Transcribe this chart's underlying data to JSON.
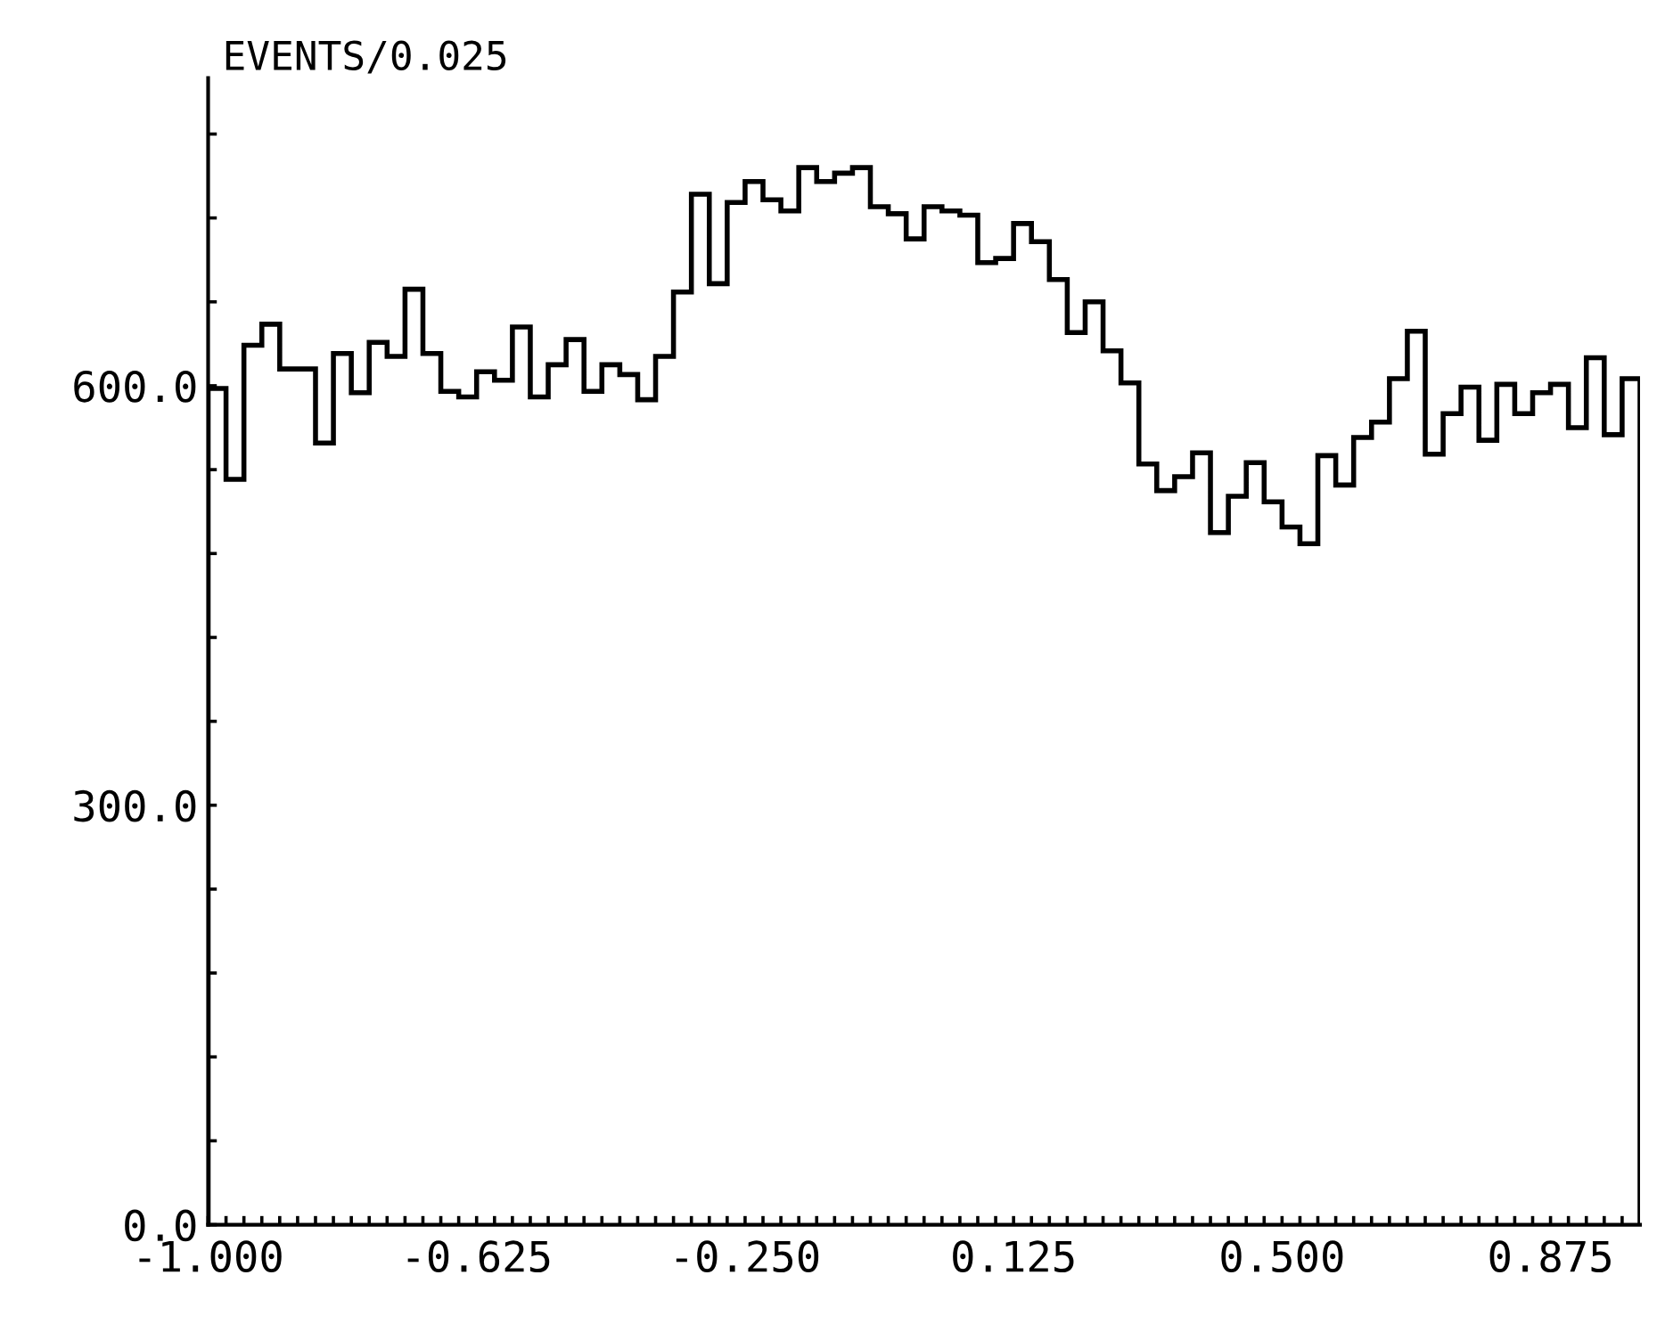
{
  "chart_data": {
    "type": "histogram",
    "ylabel": "EVENTS/0.025",
    "bins": [
      -1.0,
      -0.975,
      -0.95,
      -0.925,
      -0.9,
      -0.875,
      -0.85,
      -0.825,
      -0.8,
      -0.775,
      -0.75,
      -0.725,
      -0.7,
      -0.675,
      -0.65,
      -0.625,
      -0.6,
      -0.575,
      -0.55,
      -0.525,
      -0.5,
      -0.475,
      -0.45,
      -0.425,
      -0.4,
      -0.375,
      -0.35,
      -0.325,
      -0.3,
      -0.275,
      -0.25,
      -0.225,
      -0.2,
      -0.175,
      -0.15,
      -0.125,
      -0.1,
      -0.075,
      -0.05,
      -0.025,
      0.0,
      0.025,
      0.05,
      0.075,
      0.1,
      0.125,
      0.15,
      0.175,
      0.2,
      0.225,
      0.25,
      0.275,
      0.3,
      0.325,
      0.35,
      0.375,
      0.4,
      0.425,
      0.45,
      0.475,
      0.5,
      0.525,
      0.55,
      0.575,
      0.6,
      0.625,
      0.65,
      0.675,
      0.7,
      0.725,
      0.75,
      0.775,
      0.8,
      0.825,
      0.85,
      0.875,
      0.9,
      0.925,
      0.95,
      0.975,
      1.0
    ],
    "values": [
      598,
      533,
      629,
      644,
      612,
      612,
      559,
      623,
      595,
      631,
      621,
      669,
      623,
      596,
      592,
      610,
      604,
      642,
      592,
      615,
      633,
      596,
      615,
      608,
      590,
      621,
      667,
      737,
      673,
      731,
      746,
      733,
      725,
      756,
      746,
      752,
      756,
      728,
      723,
      705,
      728,
      725,
      722,
      688,
      691,
      716,
      703,
      676,
      638,
      660,
      625,
      602,
      544,
      525,
      535,
      552,
      495,
      521,
      545,
      517,
      499,
      487,
      550,
      529,
      563,
      574,
      605,
      639,
      551,
      580,
      599,
      561,
      601,
      580,
      595,
      601,
      570,
      620,
      565,
      605
    ],
    "color": "#000000",
    "xlim": [
      -1.0,
      1.0
    ],
    "ylim": [
      0,
      820
    ],
    "xticks": [
      {
        "value": -1.0,
        "label": "-1.000"
      },
      {
        "value": -0.625,
        "label": "-0.625"
      },
      {
        "value": -0.25,
        "label": "-0.250"
      },
      {
        "value": 0.125,
        "label": "0.125"
      },
      {
        "value": 0.5,
        "label": "0.500"
      },
      {
        "value": 0.875,
        "label": "0.875"
      },
      {
        "value": -0.975,
        "label": null
      },
      {
        "value": -0.95,
        "label": null
      },
      {
        "value": -0.925,
        "label": null
      },
      {
        "value": -0.9,
        "label": null
      },
      {
        "value": -0.875,
        "label": null
      },
      {
        "value": -0.85,
        "label": null
      },
      {
        "value": -0.825,
        "label": null
      },
      {
        "value": -0.8,
        "label": null
      },
      {
        "value": -0.775,
        "label": null
      },
      {
        "value": -0.75,
        "label": null
      },
      {
        "value": -0.725,
        "label": null
      },
      {
        "value": -0.7,
        "label": null
      },
      {
        "value": -0.675,
        "label": null
      },
      {
        "value": -0.65,
        "label": null
      },
      {
        "value": -0.6,
        "label": null
      },
      {
        "value": -0.575,
        "label": null
      },
      {
        "value": -0.55,
        "label": null
      },
      {
        "value": -0.525,
        "label": null
      },
      {
        "value": -0.5,
        "label": null
      },
      {
        "value": -0.475,
        "label": null
      },
      {
        "value": -0.45,
        "label": null
      },
      {
        "value": -0.425,
        "label": null
      },
      {
        "value": -0.4,
        "label": null
      },
      {
        "value": -0.375,
        "label": null
      },
      {
        "value": -0.35,
        "label": null
      },
      {
        "value": -0.325,
        "label": null
      },
      {
        "value": -0.3,
        "label": null
      },
      {
        "value": -0.275,
        "label": null
      },
      {
        "value": -0.225,
        "label": null
      },
      {
        "value": -0.2,
        "label": null
      },
      {
        "value": -0.175,
        "label": null
      },
      {
        "value": -0.15,
        "label": null
      },
      {
        "value": -0.125,
        "label": null
      },
      {
        "value": -0.1,
        "label": null
      },
      {
        "value": -0.075,
        "label": null
      },
      {
        "value": -0.05,
        "label": null
      },
      {
        "value": -0.025,
        "label": null
      },
      {
        "value": 0.0,
        "label": null
      },
      {
        "value": 0.025,
        "label": null
      },
      {
        "value": 0.05,
        "label": null
      },
      {
        "value": 0.075,
        "label": null
      },
      {
        "value": 0.1,
        "label": null
      },
      {
        "value": 0.15,
        "label": null
      },
      {
        "value": 0.175,
        "label": null
      },
      {
        "value": 0.2,
        "label": null
      },
      {
        "value": 0.225,
        "label": null
      },
      {
        "value": 0.25,
        "label": null
      },
      {
        "value": 0.275,
        "label": null
      },
      {
        "value": 0.3,
        "label": null
      },
      {
        "value": 0.325,
        "label": null
      },
      {
        "value": 0.35,
        "label": null
      },
      {
        "value": 0.375,
        "label": null
      },
      {
        "value": 0.4,
        "label": null
      },
      {
        "value": 0.425,
        "label": null
      },
      {
        "value": 0.45,
        "label": null
      },
      {
        "value": 0.475,
        "label": null
      },
      {
        "value": 0.525,
        "label": null
      },
      {
        "value": 0.55,
        "label": null
      },
      {
        "value": 0.575,
        "label": null
      },
      {
        "value": 0.6,
        "label": null
      },
      {
        "value": 0.625,
        "label": null
      },
      {
        "value": 0.65,
        "label": null
      },
      {
        "value": 0.675,
        "label": null
      },
      {
        "value": 0.7,
        "label": null
      },
      {
        "value": 0.725,
        "label": null
      },
      {
        "value": 0.75,
        "label": null
      },
      {
        "value": 0.775,
        "label": null
      },
      {
        "value": 0.8,
        "label": null
      },
      {
        "value": 0.825,
        "label": null
      },
      {
        "value": 0.85,
        "label": null
      },
      {
        "value": 0.9,
        "label": null
      },
      {
        "value": 0.925,
        "label": null
      },
      {
        "value": 0.95,
        "label": null
      },
      {
        "value": 0.975,
        "label": null
      }
    ],
    "yticks": [
      {
        "value": 0,
        "label": "0.0"
      },
      {
        "value": 300,
        "label": "300.0"
      },
      {
        "value": 600,
        "label": "600.0"
      },
      {
        "value": 60,
        "label": null
      },
      {
        "value": 120,
        "label": null
      },
      {
        "value": 180,
        "label": null
      },
      {
        "value": 240,
        "label": null
      },
      {
        "value": 360,
        "label": null
      },
      {
        "value": 420,
        "label": null
      },
      {
        "value": 480,
        "label": null
      },
      {
        "value": 540,
        "label": null
      },
      {
        "value": 660,
        "label": null
      },
      {
        "value": 720,
        "label": null
      },
      {
        "value": 780,
        "label": null
      }
    ],
    "grid": false,
    "legend": false
  }
}
